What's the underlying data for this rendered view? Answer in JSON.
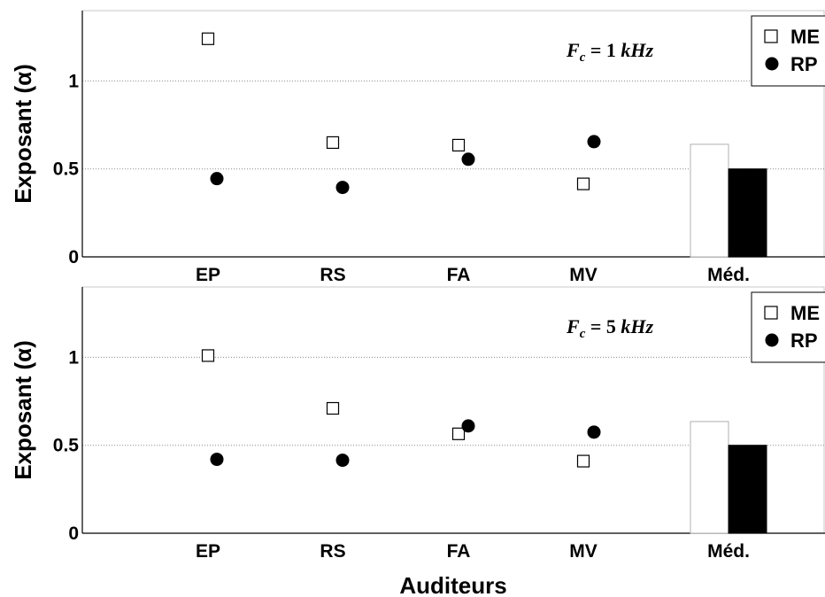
{
  "chart_data": [
    {
      "type": "scatter",
      "annotation": {
        "prefix": "F",
        "subscript": "c",
        "value": "1",
        "unit": "kHz"
      },
      "ylabel": "Exposant  (α)",
      "xlabel": "",
      "ylim": [
        0,
        1.4
      ],
      "yticks": [
        "0",
        "0.5",
        "1"
      ],
      "ytick_values": [
        0,
        0.5,
        1
      ],
      "categories": [
        "EP",
        "RS",
        "FA",
        "MV",
        "Méd."
      ],
      "grid": "horizontal-dotted",
      "legend_position": "top-right",
      "series": [
        {
          "name": "ME",
          "marker": "open-square",
          "values": [
            1.24,
            0.65,
            0.635,
            0.415
          ]
        },
        {
          "name": "RP",
          "marker": "filled-circle",
          "values": [
            0.445,
            0.395,
            0.555,
            0.655
          ]
        }
      ],
      "median_bars": {
        "ME": 0.64,
        "RP": 0.5
      }
    },
    {
      "type": "scatter",
      "annotation": {
        "prefix": "F",
        "subscript": "c",
        "value": "5",
        "unit": "kHz"
      },
      "ylabel": "Exposant  (α)",
      "xlabel": "Auditeurs",
      "ylim": [
        0,
        1.4
      ],
      "yticks": [
        "0",
        "0.5",
        "1"
      ],
      "ytick_values": [
        0,
        0.5,
        1
      ],
      "categories": [
        "EP",
        "RS",
        "FA",
        "MV",
        "Méd."
      ],
      "grid": "horizontal-dotted",
      "legend_position": "top-right",
      "series": [
        {
          "name": "ME",
          "marker": "open-square",
          "values": [
            1.01,
            0.71,
            0.565,
            0.41
          ]
        },
        {
          "name": "RP",
          "marker": "filled-circle",
          "values": [
            0.42,
            0.415,
            0.61,
            0.575
          ]
        }
      ],
      "median_bars": {
        "ME": 0.635,
        "RP": 0.5
      }
    }
  ],
  "colors": {
    "me_fill": "#ffffff",
    "rp_fill": "#000000",
    "grid": "#888888",
    "axis": "#000000"
  }
}
